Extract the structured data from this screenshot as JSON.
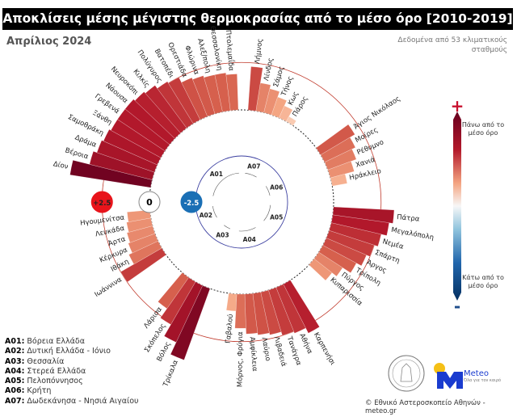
{
  "title": "Αποκλίσεις μέσης μέγιστης θερμοκρασίας από το μέσο όρο [2010-2019]",
  "subtitle": "Απρίλιος 2024",
  "source_note": "Δεδομένα από 53 κλιματικούς σταθμούς",
  "colorbar": {
    "top_symbol": "+",
    "top_label": "Πάνω από το μέσο όρο",
    "bottom_symbol": "-",
    "bottom_label": "Κάτω από το μέσο όρο"
  },
  "copyright": "© Εθνικό Αστεροσκοπείο Αθηνών - meteo.gr",
  "meteo_logo": {
    "name": "Meteo",
    "tagline": "Όλα για τον καιρό"
  },
  "chart_data": {
    "type": "radial-bar",
    "title": "Αποκλίσεις μέσης μέγιστης θερμοκρασίας από το μέσο όρο [2010-2019]",
    "unit": "°C",
    "axis_rings": [
      {
        "value": 2.5,
        "label": "+2.5",
        "color": "#e8141b"
      },
      {
        "value": 0,
        "label": "0",
        "color": "#ffffff"
      },
      {
        "value": -2.5,
        "label": "-2.5",
        "color": "#1a6fb5"
      }
    ],
    "groups": [
      {
        "code": "A01",
        "name": "Βόρεια Ελλάδα",
        "stations": [
          {
            "name": "Δίον",
            "value": 4.3
          },
          {
            "name": "Βέροια",
            "value": 3.4
          },
          {
            "name": "Δράμα",
            "value": 3.2
          },
          {
            "name": "Σαμοθράκη",
            "value": 3.1
          },
          {
            "name": "Ξάνθη",
            "value": 3.0
          },
          {
            "name": "Γρεβενά",
            "value": 3.0
          },
          {
            "name": "Νάουσα",
            "value": 3.0
          },
          {
            "name": "Νευροκόπι",
            "value": 2.9
          },
          {
            "name": "Κιλκίς",
            "value": 2.8
          },
          {
            "name": "Πολύγυρος",
            "value": 2.6
          },
          {
            "name": "Βατοπέδι",
            "value": 2.5
          },
          {
            "name": "Ορεστιάδα",
            "value": 2.2
          },
          {
            "name": "Φλώρινα",
            "value": 2.1
          },
          {
            "name": "Αλεξ/πολη",
            "value": 2.0
          },
          {
            "name": "Θεσσαλονίκη",
            "value": 2.0
          },
          {
            "name": "Πτολεμαΐδα",
            "value": 1.9
          }
        ]
      },
      {
        "code": "A07",
        "name": "Δωδεκάνησα - Νησιά Αιγαίου",
        "stations": [
          {
            "name": "Λήμνος",
            "value": 2.3
          },
          {
            "name": "Λίνδος",
            "value": 1.5
          },
          {
            "name": "Σάμος",
            "value": 1.3
          },
          {
            "name": "Τήνος",
            "value": 1.0
          },
          {
            "name": "Κως",
            "value": 0.7
          },
          {
            "name": "Πάρος",
            "value": 0.3
          }
        ]
      },
      {
        "code": "A06",
        "name": "Κρήτη",
        "stations": [
          {
            "name": "Άγιος Νικόλαος",
            "value": 2.1
          },
          {
            "name": "Μοίρες",
            "value": 1.8
          },
          {
            "name": "Ρέθυμνο",
            "value": 1.6
          },
          {
            "name": "Χανιά",
            "value": 1.3
          },
          {
            "name": "Ηράκλειο",
            "value": 0.8
          }
        ]
      },
      {
        "code": "A05",
        "name": "Πελοπόννησος",
        "stations": [
          {
            "name": "Πάτρα",
            "value": 3.2
          },
          {
            "name": "Μεγαλόπολη",
            "value": 3.0
          },
          {
            "name": "Νεμέα",
            "value": 2.7
          },
          {
            "name": "Σπάρτη",
            "value": 2.5
          },
          {
            "name": "Άργος",
            "value": 2.3
          },
          {
            "name": "Τρίπολη",
            "value": 2.0
          },
          {
            "name": "Πύργος",
            "value": 1.5
          },
          {
            "name": "Κυπαρισσία",
            "value": 1.2
          }
        ]
      },
      {
        "code": "A04",
        "name": "Στερεά Ελλάδα",
        "stations": [
          {
            "name": "Καρπενήσι",
            "value": 2.9
          },
          {
            "name": "Αθήνα",
            "value": 2.6
          },
          {
            "name": "Τανάγρα",
            "value": 2.5
          },
          {
            "name": "Λιβαδειά",
            "value": 2.3
          },
          {
            "name": "Λαύριο",
            "value": 2.2
          },
          {
            "name": "Αμφίκλεια",
            "value": 2.1
          },
          {
            "name": "Μόρνος, Φρύγια",
            "value": 1.8
          },
          {
            "name": "Γαβαλού",
            "value": 0.9
          }
        ]
      },
      {
        "code": "A03",
        "name": "Θεσσαλία",
        "stations": [
          {
            "name": "Τρίκαλα",
            "value": 4.0
          },
          {
            "name": "Βόλος",
            "value": 3.3
          },
          {
            "name": "Σκόπελος",
            "value": 2.6
          },
          {
            "name": "Λάρισα",
            "value": 2.0
          }
        ]
      },
      {
        "code": "A02",
        "name": "Δυτική Ελλάδα - Ιόνιο",
        "stations": [
          {
            "name": "Ιωάννινα",
            "value": 2.5
          },
          {
            "name": "Ιθάκη",
            "value": 1.7
          },
          {
            "name": "Κέρκυρα",
            "value": 1.5
          },
          {
            "name": "Άρτα",
            "value": 1.4
          },
          {
            "name": "Λευκάδα",
            "value": 1.3
          },
          {
            "name": "Ηγουμενίτσα",
            "value": 1.2
          }
        ]
      }
    ]
  },
  "legend": [
    {
      "code": "A01:",
      "name": "Βόρεια Ελλάδα"
    },
    {
      "code": "A02:",
      "name": "Δυτική Ελλάδα - Ιόνιο"
    },
    {
      "code": "A03:",
      "name": "Θεσσαλία"
    },
    {
      "code": "A04:",
      "name": "Στερεά Ελλάδα"
    },
    {
      "code": "A05:",
      "name": "Πελοπόννησος"
    },
    {
      "code": "A06:",
      "name": "Κρήτη"
    },
    {
      "code": "A07:",
      "name": "Δωδεκάνησα - Νησιά Αιγαίου"
    }
  ]
}
